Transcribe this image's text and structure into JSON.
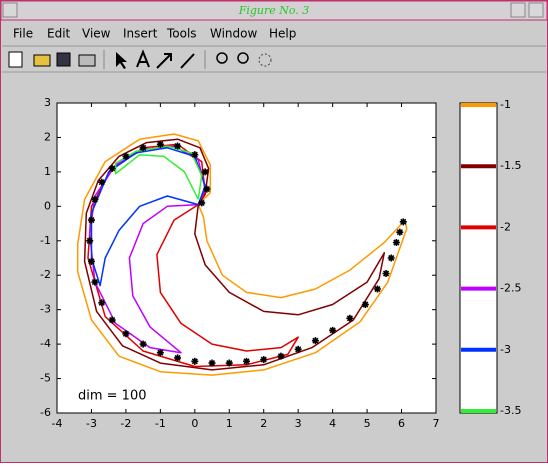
{
  "window_title": "Figure No. 3",
  "menu": [
    "File",
    "Edit",
    "View",
    "Insert",
    "Tools",
    "Window",
    "Help"
  ],
  "chart_data": {
    "type": "line",
    "annotation": "dim = 100",
    "xlim": [
      -4,
      7
    ],
    "xticks": [
      -4,
      -3,
      -2,
      -1,
      0,
      1,
      2,
      3,
      4,
      5,
      6,
      7
    ],
    "ylim": [
      -6,
      3
    ],
    "yticks": [
      -6,
      -5,
      -4,
      -3,
      -2,
      -1,
      0,
      1,
      2,
      3
    ],
    "series": [
      {
        "name": "-1",
        "color": "#ff9900",
        "x": [
          0.1,
          0.25,
          0.35,
          0.8,
          1.5,
          2.5,
          3.5,
          4.5,
          5.5,
          6.1,
          6.15,
          5.6,
          4.8,
          3.5,
          2,
          0.5,
          -1,
          -2.2,
          -3,
          -3.4,
          -3.4,
          -3.2,
          -2.6,
          -1.6,
          -0.6,
          0.1,
          0.45,
          0.45,
          0.1
        ],
        "y": [
          0.05,
          -0.3,
          -1,
          -2,
          -2.5,
          -2.65,
          -2.4,
          -1.85,
          -1.05,
          -0.4,
          -0.65,
          -2.2,
          -3.35,
          -4.25,
          -4.75,
          -4.9,
          -4.8,
          -4.35,
          -3.3,
          -1.9,
          -1.1,
          0.2,
          1.3,
          1.95,
          2.1,
          1.9,
          1.2,
          0.4,
          0.05
        ]
      },
      {
        "name": "-1.5",
        "color": "#800000",
        "x": [
          0.1,
          0,
          0.3,
          1,
          2,
          3,
          4,
          5,
          5.5,
          5.35,
          4.6,
          3.4,
          2,
          0.5,
          -1,
          -2.1,
          -2.85,
          -3.2,
          -3.15,
          -2.8,
          -2.2,
          -1.4,
          -0.5,
          0.15,
          0.4,
          0.3,
          0.1
        ],
        "y": [
          0.05,
          -0.8,
          -1.7,
          -2.5,
          -3.05,
          -3.15,
          -2.85,
          -2.2,
          -1.35,
          -2.1,
          -3.3,
          -4.1,
          -4.6,
          -4.75,
          -4.55,
          -4.05,
          -3.05,
          -1.6,
          -0.2,
          0.75,
          1.45,
          1.85,
          1.95,
          1.7,
          1.1,
          0.35,
          0.05
        ]
      },
      {
        "name": "-2",
        "color": "#e00000",
        "x": [
          0.1,
          -0.6,
          -1.1,
          -1,
          -0.4,
          0.5,
          1.5,
          2.5,
          3,
          2.7,
          1.5,
          0,
          -1.5,
          -2.6,
          -3.1,
          -3,
          -2.4,
          -1.5,
          -0.5,
          0.2,
          0.3,
          0.1
        ],
        "y": [
          0.05,
          -0.4,
          -1.4,
          -2.5,
          -3.4,
          -4,
          -4.2,
          -4.1,
          -3.8,
          -4.3,
          -4.6,
          -4.65,
          -4.2,
          -3.2,
          -1.5,
          0,
          1.1,
          1.7,
          1.8,
          1.3,
          0.4,
          0.05
        ]
      },
      {
        "name": "-2.5",
        "color": "#c000ff",
        "x": [
          0.1,
          -0.8,
          -1.5,
          -1.9,
          -1.8,
          -1.3,
          -0.4,
          -1.3,
          -2.3,
          -2.9,
          -3.05,
          -2.9,
          -2.3,
          -1.5,
          -0.6,
          0.1,
          0.3,
          0.1
        ],
        "y": [
          0.05,
          0,
          -0.5,
          -1.5,
          -2.6,
          -3.5,
          -4.25,
          -4.1,
          -3.4,
          -2.2,
          -0.8,
          0.3,
          1.2,
          1.65,
          1.75,
          1.35,
          0.5,
          0.05
        ]
      },
      {
        "name": "-3",
        "color": "#0033ff",
        "x": [
          0.1,
          -0.8,
          -1.6,
          -2.2,
          -2.6,
          -2.75,
          -3,
          -3,
          -2.5,
          -1.7,
          -0.8,
          0,
          0.3,
          0.1
        ],
        "y": [
          0.05,
          0.3,
          0,
          -0.7,
          -1.5,
          -2.3,
          -1.5,
          -0.2,
          1.0,
          1.55,
          1.7,
          1.45,
          0.6,
          0.05
        ]
      },
      {
        "name": "-3.5",
        "color": "#33ee33",
        "x": [
          0.1,
          -0.3,
          -0.9,
          -1.6,
          -2.3,
          -2.3,
          -1.7,
          -0.8,
          -0.1,
          0.2,
          0.1
        ],
        "y": [
          0.2,
          1.0,
          1.45,
          1.5,
          0.95,
          1.25,
          1.6,
          1.75,
          1.55,
          0.9,
          0.2
        ]
      },
      {
        "color": "#000000",
        "marker": "star",
        "x": [
          6.05,
          5.95,
          5.85,
          5.7,
          5.55,
          5.3,
          4.95,
          4.5,
          4,
          3.5,
          3,
          2.5,
          2,
          1.5,
          1,
          0.5,
          0,
          -0.5,
          -1,
          -1.5,
          -2,
          -2.4,
          -2.7,
          -2.9,
          -3,
          -3.05,
          -3,
          -2.9,
          -2.7,
          -2.4,
          -2,
          -1.5,
          -1,
          -0.5,
          0,
          0.3,
          0.35,
          0.2
        ],
        "y": [
          -0.45,
          -0.75,
          -1.05,
          -1.5,
          -1.95,
          -2.4,
          -2.85,
          -3.25,
          -3.6,
          -3.9,
          -4.15,
          -4.35,
          -4.45,
          -4.5,
          -4.55,
          -4.55,
          -4.5,
          -4.4,
          -4.25,
          -4,
          -3.7,
          -3.3,
          -2.8,
          -2.2,
          -1.6,
          -1,
          -0.4,
          0.2,
          0.7,
          1.1,
          1.45,
          1.7,
          1.8,
          1.75,
          1.5,
          1,
          0.5,
          0.1
        ]
      }
    ]
  }
}
